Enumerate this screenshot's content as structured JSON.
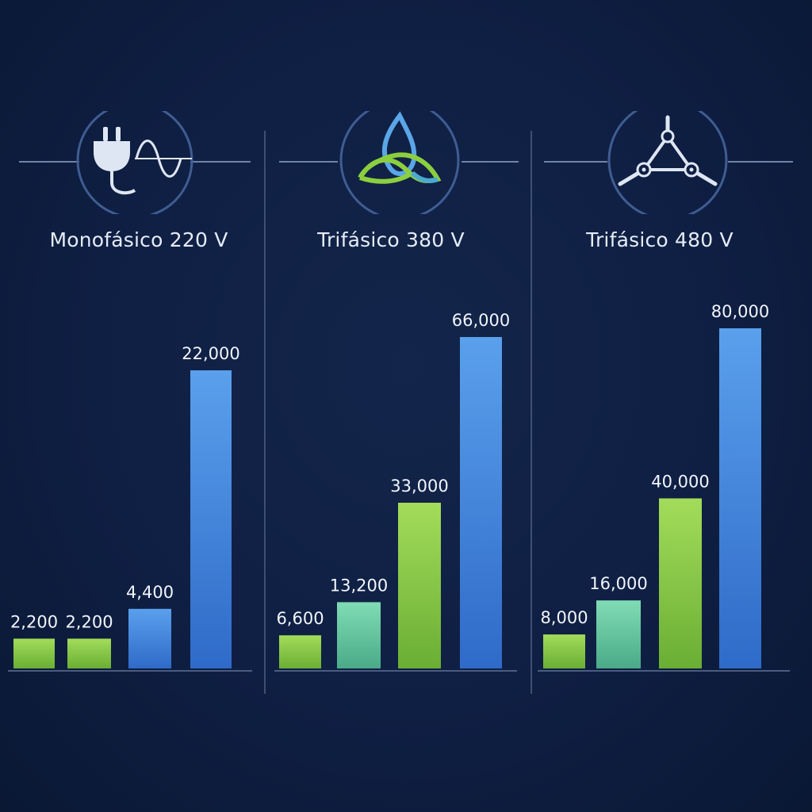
{
  "colors": {
    "background": "#0f1f43",
    "green_top": "#a3dc5a",
    "green_bottom": "#6aae34",
    "teal_top": "#80dcb4",
    "teal_bottom": "#4aaa88",
    "blue_top": "#5aa0ec",
    "blue_bottom": "#2f6ac8",
    "label": "#f2f5fb",
    "axis": "#4a5c80",
    "icon_stroke": "#dfe6f3"
  },
  "panels": [
    {
      "icon": "plug-sine-wave-icon",
      "title": "Monofásico 220 V"
    },
    {
      "icon": "triquetra-drop-icon",
      "title": "Trifásico 380 V"
    },
    {
      "icon": "three-phase-triangle-icon",
      "title": "Trifásico 480 V"
    }
  ],
  "chart_data": [
    {
      "type": "bar",
      "title": "Monofásico 220 V",
      "values": [
        2200,
        2200,
        4400,
        22000
      ],
      "labels": [
        "2,200",
        "2,200",
        "4,400",
        "22,000"
      ],
      "bar_colors": [
        "green",
        "green",
        "blue",
        "blue"
      ]
    },
    {
      "type": "bar",
      "title": "Trifásico 380 V",
      "values": [
        6600,
        13200,
        33000,
        66000
      ],
      "labels": [
        "6,600",
        "13,200",
        "33,000",
        "66,000"
      ],
      "bar_colors": [
        "green",
        "teal",
        "green",
        "blue"
      ]
    },
    {
      "type": "bar",
      "title": "Trifásico 480 V",
      "values": [
        8000,
        16000,
        40000,
        80000
      ],
      "labels": [
        "8,000",
        "16,000",
        "40,000",
        "80,000"
      ],
      "bar_colors": [
        "green",
        "teal",
        "green",
        "blue"
      ]
    }
  ]
}
